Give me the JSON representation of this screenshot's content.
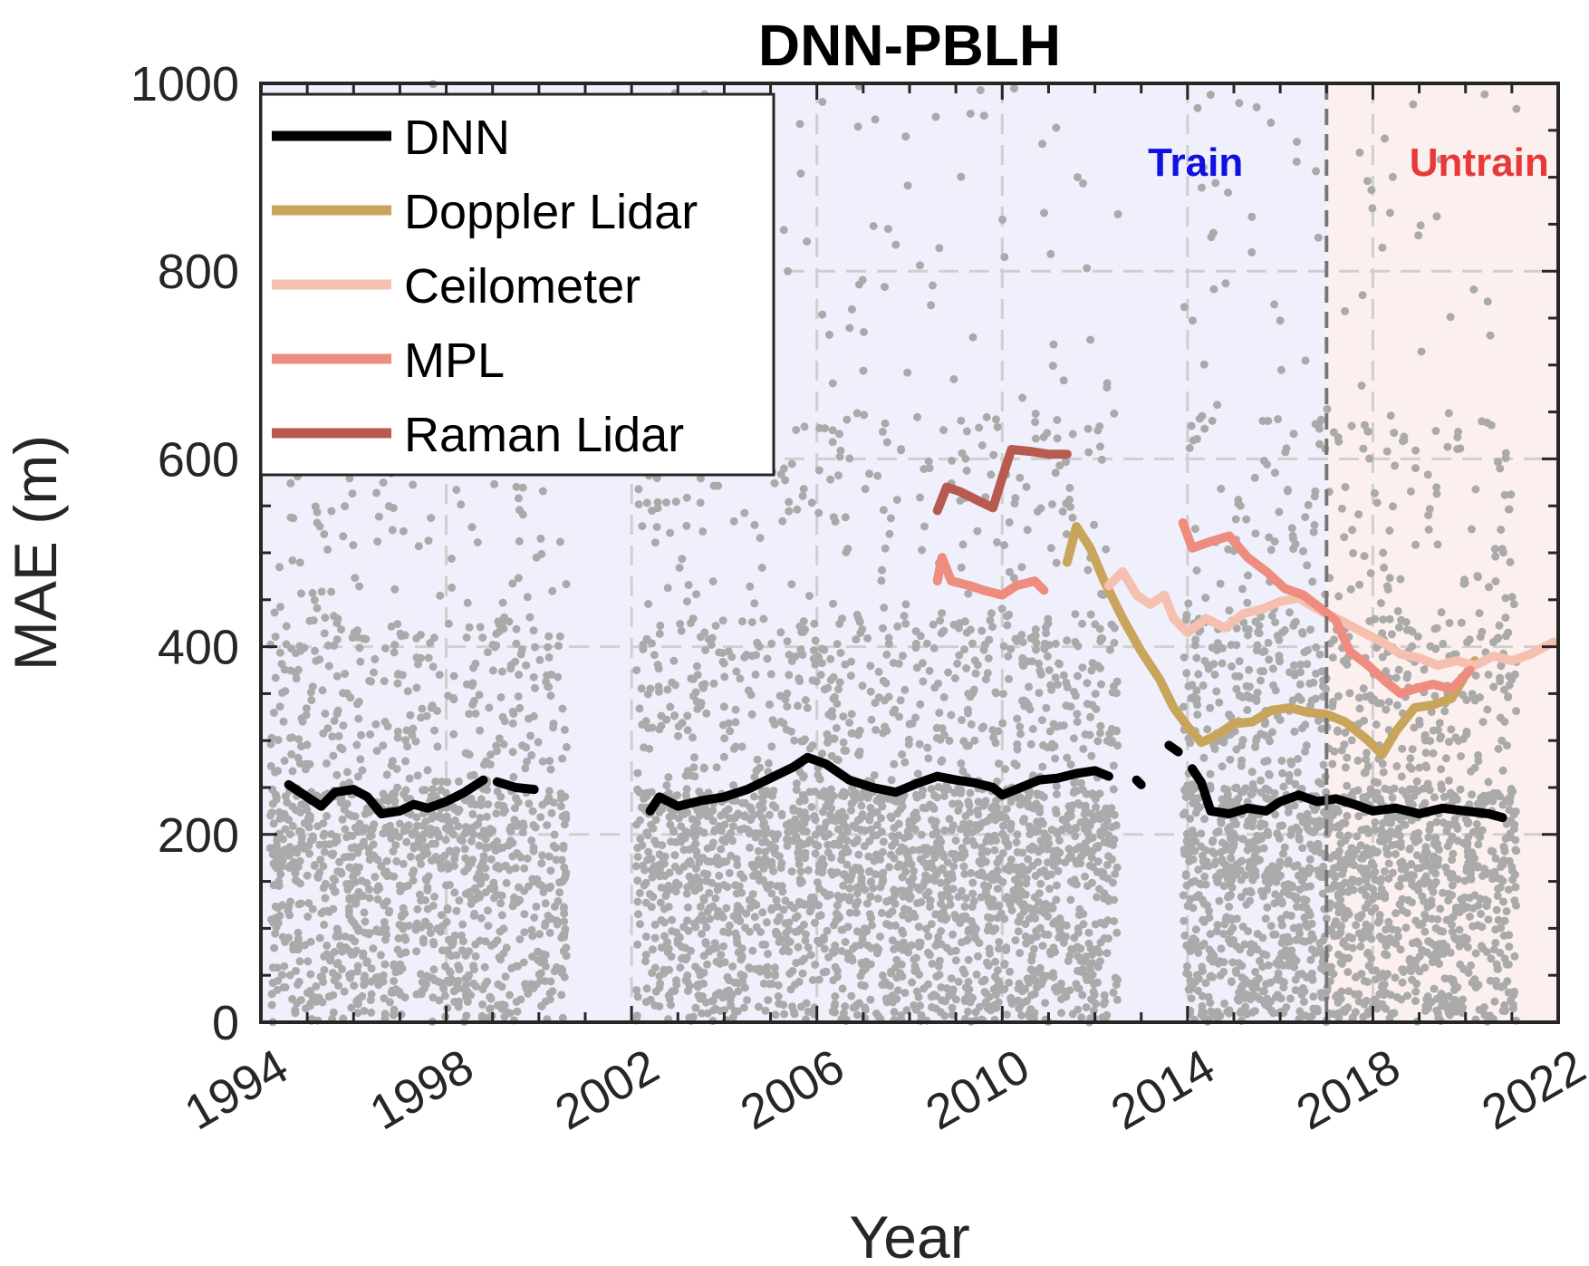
{
  "chart_data": {
    "type": "line",
    "title": "DNN-PBLH",
    "xlabel": "Year",
    "ylabel": "MAE (m)",
    "xlim": [
      1994,
      2022
    ],
    "ylim": [
      0,
      1000
    ],
    "xticks": [
      "1994",
      "1998",
      "2002",
      "2006",
      "2010",
      "2014",
      "2018",
      "2022"
    ],
    "yticks": [
      "0",
      "200",
      "400",
      "600",
      "800",
      "1000"
    ],
    "grid": true,
    "legend_placement": "top-left",
    "split_year": 2017,
    "regions": [
      {
        "label": "Train",
        "from": 1994,
        "to": 2017,
        "color": "#f0f0fc",
        "text_color": "#1010e0"
      },
      {
        "label": "Untrain",
        "from": 2017,
        "to": 2022,
        "color": "#fcf0ef",
        "text_color": "#e83838"
      }
    ],
    "scatter_color": "#aaaaaa",
    "series": [
      {
        "name": "DNN",
        "color": "#000000",
        "segments": [
          [
            [
              1994.6,
              253
            ],
            [
              1995.0,
              240
            ],
            [
              1995.3,
              230
            ],
            [
              1995.6,
              245
            ],
            [
              1996.0,
              248
            ],
            [
              1996.3,
              240
            ],
            [
              1996.6,
              222
            ],
            [
              1997.0,
              225
            ],
            [
              1997.3,
              232
            ],
            [
              1997.6,
              228
            ],
            [
              1998.0,
              235
            ],
            [
              1998.4,
              245
            ],
            [
              1998.8,
              258
            ]
          ],
          [
            [
              1999.1,
              256
            ],
            [
              1999.5,
              250
            ],
            [
              1999.9,
              248
            ]
          ],
          [
            [
              2002.4,
              225
            ],
            [
              2002.6,
              240
            ],
            [
              2003.0,
              230
            ],
            [
              2003.5,
              236
            ],
            [
              2004.0,
              240
            ],
            [
              2004.5,
              248
            ],
            [
              2005.0,
              260
            ],
            [
              2005.5,
              272
            ],
            [
              2005.8,
              282
            ],
            [
              2006.2,
              275
            ],
            [
              2006.7,
              258
            ],
            [
              2007.2,
              250
            ],
            [
              2007.7,
              245
            ],
            [
              2008.2,
              255
            ],
            [
              2008.6,
              262
            ],
            [
              2009.0,
              258
            ],
            [
              2009.4,
              255
            ],
            [
              2009.8,
              250
            ],
            [
              2010.0,
              242
            ],
            [
              2010.4,
              250
            ],
            [
              2010.8,
              258
            ],
            [
              2011.2,
              260
            ],
            [
              2011.6,
              265
            ],
            [
              2012.0,
              268
            ],
            [
              2012.3,
              262
            ]
          ],
          [
            [
              2012.9,
              258
            ],
            [
              2013.0,
              253
            ]
          ],
          [
            [
              2013.6,
              295
            ],
            [
              2013.8,
              288
            ]
          ],
          [
            [
              2014.1,
              270
            ],
            [
              2014.3,
              255
            ],
            [
              2014.5,
              225
            ],
            [
              2014.9,
              222
            ],
            [
              2015.3,
              228
            ],
            [
              2015.7,
              225
            ],
            [
              2016.0,
              235
            ],
            [
              2016.4,
              242
            ],
            [
              2016.8,
              235
            ],
            [
              2017.2,
              238
            ],
            [
              2017.6,
              232
            ],
            [
              2018.0,
              225
            ],
            [
              2018.5,
              228
            ],
            [
              2019.0,
              222
            ],
            [
              2019.5,
              228
            ],
            [
              2020.0,
              225
            ],
            [
              2020.5,
              222
            ],
            [
              2020.8,
              218
            ]
          ]
        ]
      },
      {
        "name": "Doppler Lidar",
        "color": "#c9a55c",
        "segments": [
          [
            [
              2011.4,
              490
            ],
            [
              2011.6,
              528
            ],
            [
              2011.9,
              505
            ],
            [
              2012.2,
              470
            ],
            [
              2012.6,
              430
            ],
            [
              2013.0,
              395
            ],
            [
              2013.4,
              365
            ],
            [
              2013.7,
              335
            ],
            [
              2014.0,
              315
            ],
            [
              2014.3,
              298
            ],
            [
              2014.6,
              305
            ],
            [
              2015.0,
              318
            ],
            [
              2015.4,
              320
            ],
            [
              2015.8,
              332
            ],
            [
              2016.2,
              335
            ],
            [
              2016.6,
              330
            ],
            [
              2017.0,
              328
            ],
            [
              2017.4,
              320
            ],
            [
              2017.9,
              300
            ],
            [
              2018.2,
              285
            ],
            [
              2018.5,
              310
            ],
            [
              2018.9,
              335
            ],
            [
              2019.3,
              338
            ],
            [
              2019.7,
              345
            ],
            [
              2020.0,
              370
            ],
            [
              2020.2,
              385
            ]
          ]
        ]
      },
      {
        "name": "Ceilometer",
        "color": "#f5c0b0",
        "segments": [
          [
            [
              2012.3,
              465
            ],
            [
              2012.6,
              480
            ],
            [
              2012.9,
              455
            ],
            [
              2013.2,
              445
            ],
            [
              2013.5,
              455
            ],
            [
              2013.7,
              430
            ],
            [
              2014.0,
              415
            ],
            [
              2014.4,
              430
            ],
            [
              2014.8,
              420
            ],
            [
              2015.2,
              435
            ],
            [
              2015.6,
              440
            ],
            [
              2016.0,
              448
            ],
            [
              2016.4,
              452
            ],
            [
              2016.8,
              440
            ],
            [
              2017.3,
              428
            ],
            [
              2017.8,
              415
            ],
            [
              2018.2,
              405
            ],
            [
              2018.6,
              392
            ],
            [
              2019.0,
              388
            ],
            [
              2019.4,
              380
            ],
            [
              2019.8,
              385
            ],
            [
              2020.2,
              380
            ],
            [
              2020.6,
              390
            ],
            [
              2021.0,
              385
            ],
            [
              2021.4,
              392
            ],
            [
              2021.9,
              405
            ]
          ]
        ]
      },
      {
        "name": "MPL",
        "color": "#ee8c80",
        "segments": [
          [
            [
              2008.6,
              470
            ],
            [
              2008.7,
              495
            ],
            [
              2008.9,
              470
            ],
            [
              2009.3,
              465
            ],
            [
              2009.6,
              460
            ],
            [
              2010.0,
              455
            ],
            [
              2010.3,
              465
            ],
            [
              2010.7,
              470
            ],
            [
              2010.9,
              460
            ]
          ],
          [
            [
              2013.9,
              532
            ],
            [
              2014.1,
              505
            ],
            [
              2014.5,
              512
            ],
            [
              2014.9,
              518
            ],
            [
              2015.3,
              495
            ],
            [
              2015.7,
              480
            ],
            [
              2016.1,
              462
            ],
            [
              2016.5,
              455
            ],
            [
              2016.9,
              440
            ],
            [
              2017.2,
              428
            ],
            [
              2017.5,
              395
            ],
            [
              2017.9,
              380
            ],
            [
              2018.3,
              362
            ],
            [
              2018.6,
              350
            ],
            [
              2018.9,
              355
            ],
            [
              2019.3,
              360
            ],
            [
              2019.7,
              355
            ],
            [
              2020.1,
              375
            ]
          ]
        ]
      },
      {
        "name": "Raman Lidar",
        "color": "#b85a50",
        "segments": [
          [
            [
              2008.6,
              545
            ],
            [
              2008.8,
              570
            ],
            [
              2009.1,
              565
            ],
            [
              2009.5,
              555
            ],
            [
              2009.8,
              548
            ],
            [
              2010.0,
              580
            ],
            [
              2010.2,
              610
            ],
            [
              2010.6,
              608
            ],
            [
              2011.0,
              605
            ],
            [
              2011.4,
              605
            ]
          ]
        ]
      }
    ]
  }
}
